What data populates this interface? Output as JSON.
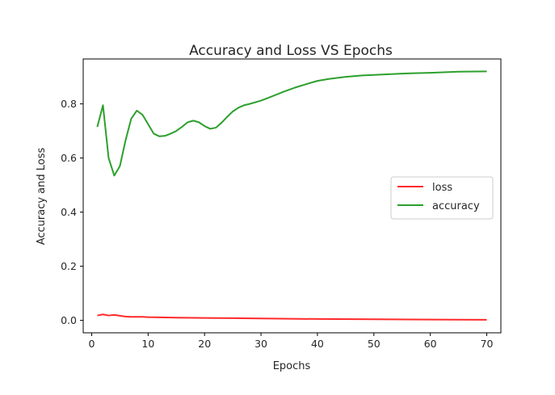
{
  "chart_data": {
    "type": "line",
    "title": "Accuracy and Loss VS Epochs",
    "xlabel": "Epochs",
    "ylabel": "Accuracy and Loss",
    "xlim": [
      -1.5,
      72.5
    ],
    "ylim": [
      -0.046,
      0.966
    ],
    "xticks": [
      "0",
      "10",
      "20",
      "30",
      "40",
      "50",
      "60",
      "70"
    ],
    "yticks": [
      "0.0",
      "0.2",
      "0.4",
      "0.6",
      "0.8"
    ],
    "grid": false,
    "legend_position": "center-right",
    "series": [
      {
        "name": "loss",
        "color": "#ff2a2a",
        "x": [
          1,
          2,
          3,
          4,
          5,
          6,
          7,
          8,
          9,
          10,
          12,
          15,
          20,
          25,
          30,
          40,
          50,
          60,
          70
        ],
        "y": [
          0.018,
          0.022,
          0.018,
          0.02,
          0.017,
          0.014,
          0.013,
          0.013,
          0.013,
          0.012,
          0.011,
          0.01,
          0.009,
          0.008,
          0.007,
          0.005,
          0.004,
          0.003,
          0.002
        ]
      },
      {
        "name": "accuracy",
        "color": "#2ca02c",
        "x": [
          1,
          2,
          3,
          4,
          5,
          6,
          7,
          8,
          9,
          10,
          11,
          12,
          13,
          14,
          15,
          16,
          17,
          18,
          19,
          20,
          21,
          22,
          23,
          24,
          25,
          26,
          27,
          28,
          30,
          32,
          34,
          36,
          38,
          40,
          42,
          45,
          48,
          50,
          55,
          60,
          65,
          70
        ],
        "y": [
          0.715,
          0.795,
          0.6,
          0.535,
          0.57,
          0.665,
          0.745,
          0.775,
          0.76,
          0.725,
          0.69,
          0.68,
          0.682,
          0.69,
          0.7,
          0.715,
          0.732,
          0.738,
          0.732,
          0.718,
          0.708,
          0.712,
          0.73,
          0.752,
          0.772,
          0.786,
          0.795,
          0.8,
          0.812,
          0.828,
          0.845,
          0.86,
          0.873,
          0.885,
          0.892,
          0.9,
          0.905,
          0.907,
          0.912,
          0.915,
          0.919,
          0.92
        ]
      }
    ]
  }
}
